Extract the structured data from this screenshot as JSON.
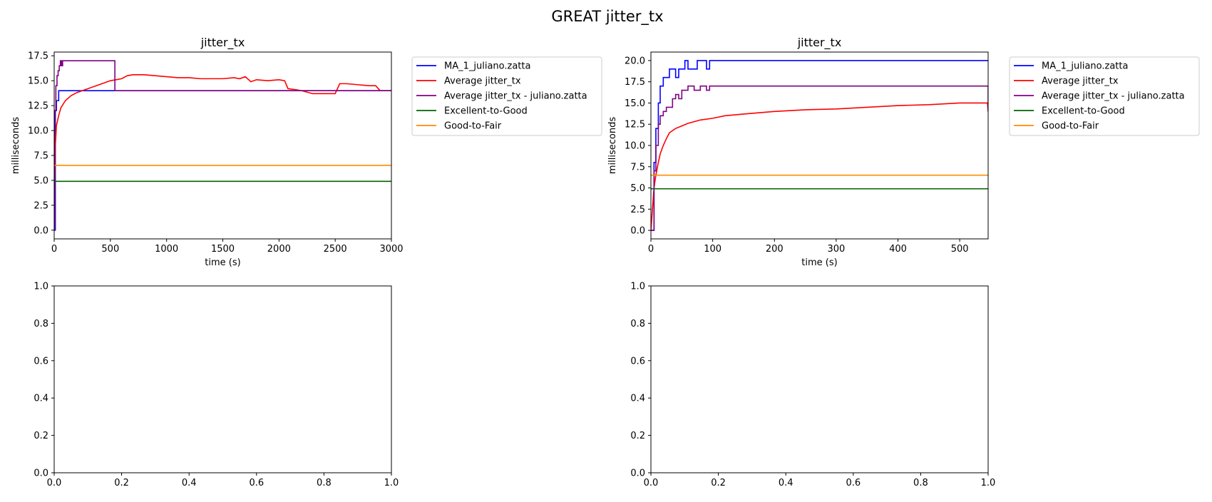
{
  "figure": {
    "title": "GREAT jitter_tx"
  },
  "chart_data": [
    {
      "type": "line",
      "title": "jitter_tx",
      "xlabel": "time (s)",
      "ylabel": "milliseconds",
      "xlim": [
        0,
        3000
      ],
      "ylim": [
        -0.875,
        17.875
      ],
      "xticks": [
        0,
        500,
        1000,
        1500,
        2000,
        2500,
        3000
      ],
      "yticks": [
        0.0,
        2.5,
        5.0,
        7.5,
        10.0,
        12.5,
        15.0,
        17.5
      ],
      "grid": false,
      "legend_position": "outside-upper-right",
      "series": [
        {
          "name": "MA_1_juliano.zatta",
          "color": "#0000ff",
          "step": true,
          "x": [
            0,
            10,
            20,
            40,
            3000
          ],
          "y": [
            0,
            12,
            13,
            14,
            14
          ]
        },
        {
          "name": "Average jitter_tx",
          "color": "#ff0000",
          "step": false,
          "x": [
            0,
            10,
            20,
            40,
            60,
            100,
            150,
            200,
            300,
            400,
            500,
            550,
            600,
            650,
            700,
            800,
            900,
            1000,
            1100,
            1200,
            1300,
            1400,
            1500,
            1600,
            1650,
            1700,
            1750,
            1800,
            1900,
            2000,
            2050,
            2080,
            2150,
            2200,
            2300,
            2400,
            2500,
            2540,
            2600,
            2700,
            2800,
            2860,
            2900,
            3000
          ],
          "y": [
            0,
            8.5,
            10.5,
            11.5,
            12.3,
            13.0,
            13.5,
            13.8,
            14.2,
            14.6,
            15.0,
            15.1,
            15.2,
            15.5,
            15.6,
            15.6,
            15.5,
            15.4,
            15.3,
            15.3,
            15.2,
            15.2,
            15.2,
            15.3,
            15.2,
            15.4,
            14.9,
            15.1,
            15.0,
            15.1,
            15.0,
            14.2,
            14.1,
            14.0,
            13.7,
            13.7,
            13.7,
            14.7,
            14.7,
            14.6,
            14.5,
            14.5,
            14.0,
            14.0
          ]
        },
        {
          "name": "Average jitter_tx - juliano.zatta",
          "color": "#800080",
          "step": true,
          "x": [
            0,
            5,
            15,
            25,
            35,
            45,
            55,
            65,
            75,
            540,
            3000
          ],
          "y": [
            0,
            12,
            14.5,
            15.5,
            16,
            16.5,
            17,
            16.5,
            17,
            14,
            14
          ]
        },
        {
          "name": "Excellent-to-Good",
          "color": "#006400",
          "step": false,
          "x": [
            0,
            3000
          ],
          "y": [
            4.9,
            4.9
          ]
        },
        {
          "name": "Good-to-Fair",
          "color": "#ff8c00",
          "step": false,
          "x": [
            0,
            3000
          ],
          "y": [
            6.5,
            6.5
          ]
        }
      ]
    },
    {
      "type": "line",
      "title": "jitter_tx",
      "xlabel": "time (s)",
      "ylabel": "milliseconds",
      "xlim": [
        0,
        546
      ],
      "ylim": [
        -1.0,
        21.0
      ],
      "xticks": [
        0,
        100,
        200,
        300,
        400,
        500
      ],
      "yticks": [
        0.0,
        2.5,
        5.0,
        7.5,
        10.0,
        12.5,
        15.0,
        17.5,
        20.0
      ],
      "grid": false,
      "legend_position": "outside-upper-right",
      "series": [
        {
          "name": "MA_1_juliano.zatta",
          "color": "#0000ff",
          "step": true,
          "x": [
            0,
            5,
            8,
            12,
            15,
            20,
            25,
            30,
            40,
            45,
            50,
            55,
            60,
            65,
            70,
            75,
            80,
            90,
            95,
            546
          ],
          "y": [
            0,
            8,
            12,
            15,
            17,
            18,
            18,
            19,
            18,
            19,
            19,
            20,
            19,
            19,
            19,
            20,
            20,
            19,
            20,
            20
          ]
        },
        {
          "name": "Average jitter_tx",
          "color": "#ff0000",
          "step": false,
          "x": [
            0,
            5,
            8,
            12,
            15,
            20,
            25,
            30,
            40,
            50,
            60,
            70,
            80,
            100,
            120,
            150,
            200,
            250,
            300,
            350,
            400,
            450,
            500,
            545,
            546
          ],
          "y": [
            0,
            5,
            6.5,
            8,
            9,
            10,
            10.8,
            11.5,
            12,
            12.3,
            12.6,
            12.8,
            13.0,
            13.2,
            13.5,
            13.7,
            14.0,
            14.2,
            14.3,
            14.5,
            14.7,
            14.8,
            15.0,
            15.0,
            14.0
          ]
        },
        {
          "name": "Average jitter_tx - juliano.zatta",
          "color": "#800080",
          "step": true,
          "x": [
            0,
            5,
            8,
            12,
            15,
            20,
            25,
            30,
            35,
            40,
            45,
            50,
            55,
            60,
            70,
            80,
            90,
            95,
            545,
            546
          ],
          "y": [
            0,
            7,
            10,
            12.5,
            13.5,
            14,
            14.5,
            14.5,
            15.5,
            16,
            15.5,
            16.5,
            16.5,
            17,
            16.5,
            17,
            16.5,
            17,
            17,
            14
          ]
        },
        {
          "name": "Excellent-to-Good",
          "color": "#006400",
          "step": false,
          "x": [
            0,
            546
          ],
          "y": [
            4.9,
            4.9
          ]
        },
        {
          "name": "Good-to-Fair",
          "color": "#ff8c00",
          "step": false,
          "x": [
            0,
            546
          ],
          "y": [
            6.5,
            6.5
          ]
        }
      ]
    },
    {
      "type": "line",
      "title": "",
      "xlabel": "",
      "ylabel": "",
      "xlim": [
        0,
        1
      ],
      "ylim": [
        0,
        1
      ],
      "xticks": [
        0.0,
        0.2,
        0.4,
        0.6,
        0.8,
        1.0
      ],
      "yticks": [
        0.0,
        0.2,
        0.4,
        0.6,
        0.8,
        1.0
      ],
      "grid": false,
      "series": []
    },
    {
      "type": "line",
      "title": "",
      "xlabel": "",
      "ylabel": "",
      "xlim": [
        0,
        1
      ],
      "ylim": [
        0,
        1
      ],
      "xticks": [
        0.0,
        0.2,
        0.4,
        0.6,
        0.8,
        1.0
      ],
      "yticks": [
        0.0,
        0.2,
        0.4,
        0.6,
        0.8,
        1.0
      ],
      "grid": false,
      "series": []
    }
  ]
}
